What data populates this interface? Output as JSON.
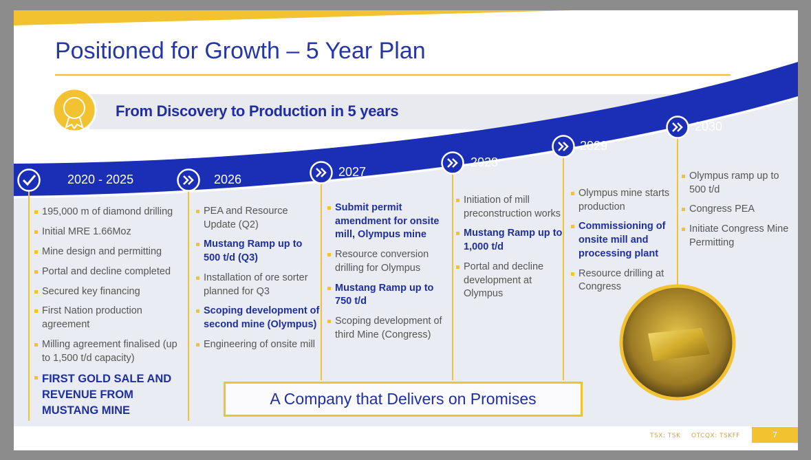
{
  "header": {
    "title": "Positioned for Growth – 5 Year Plan"
  },
  "banner": {
    "text": "From Discovery to Production in 5 years"
  },
  "timeline": [
    {
      "period": "2020 - 2025",
      "items": [
        {
          "text": "195,000 m of diamond drilling"
        },
        {
          "text": "Initial MRE 1.66Moz"
        },
        {
          "text": "Mine design and permitting"
        },
        {
          "text": "Portal and decline completed"
        },
        {
          "text": "Secured key financing"
        },
        {
          "text": "First Nation production agreement"
        },
        {
          "text": "Milling agreement finalised (up to 1,500 t/d capacity)"
        },
        {
          "text": "FIRST GOLD SALE AND REVENUE FROM MUSTANG MINE",
          "bold": true,
          "large": true
        }
      ]
    },
    {
      "period": "2026",
      "items": [
        {
          "text": "PEA and Resource Update (Q2)"
        },
        {
          "text": "Mustang Ramp up to 500 t/d (Q3)",
          "bold": true
        },
        {
          "text": "Installation of ore sorter planned for Q3"
        },
        {
          "text": "Scoping development of second mine (Olympus)",
          "bold": true
        },
        {
          "text": "Engineering of onsite mill"
        }
      ]
    },
    {
      "period": "2027",
      "items": [
        {
          "text": "Submit permit amendment for onsite mill, Olympus mine",
          "bold": true
        },
        {
          "text": "Resource conversion drilling for Olympus"
        },
        {
          "text": "Mustang Ramp up to 750 t/d",
          "bold": true
        },
        {
          "text": "Scoping development of third Mine (Congress)"
        }
      ]
    },
    {
      "period": "2028",
      "items": [
        {
          "text": "Initiation of mill preconstruction works"
        },
        {
          "text": "Mustang Ramp up to 1,000 t/d",
          "bold": true
        },
        {
          "text": "Portal and decline development at Olympus"
        }
      ]
    },
    {
      "period": "2029",
      "items": [
        {
          "text": "Olympus mine starts production"
        },
        {
          "text": "Commissioning of onsite mill and processing plant",
          "bold": true
        },
        {
          "text": "Resource drilling at Congress"
        }
      ]
    },
    {
      "period": "2030",
      "items": [
        {
          "text": "Olympus ramp up to 500 t/d"
        },
        {
          "text": "Congress PEA"
        },
        {
          "text": "Initiate Congress Mine Permitting"
        }
      ]
    }
  ],
  "tagline": "A Company that Delivers on Promises",
  "footer": {
    "tickers": [
      "TSX: TSK",
      "OTCQX: TSKFF"
    ],
    "page": "7"
  }
}
